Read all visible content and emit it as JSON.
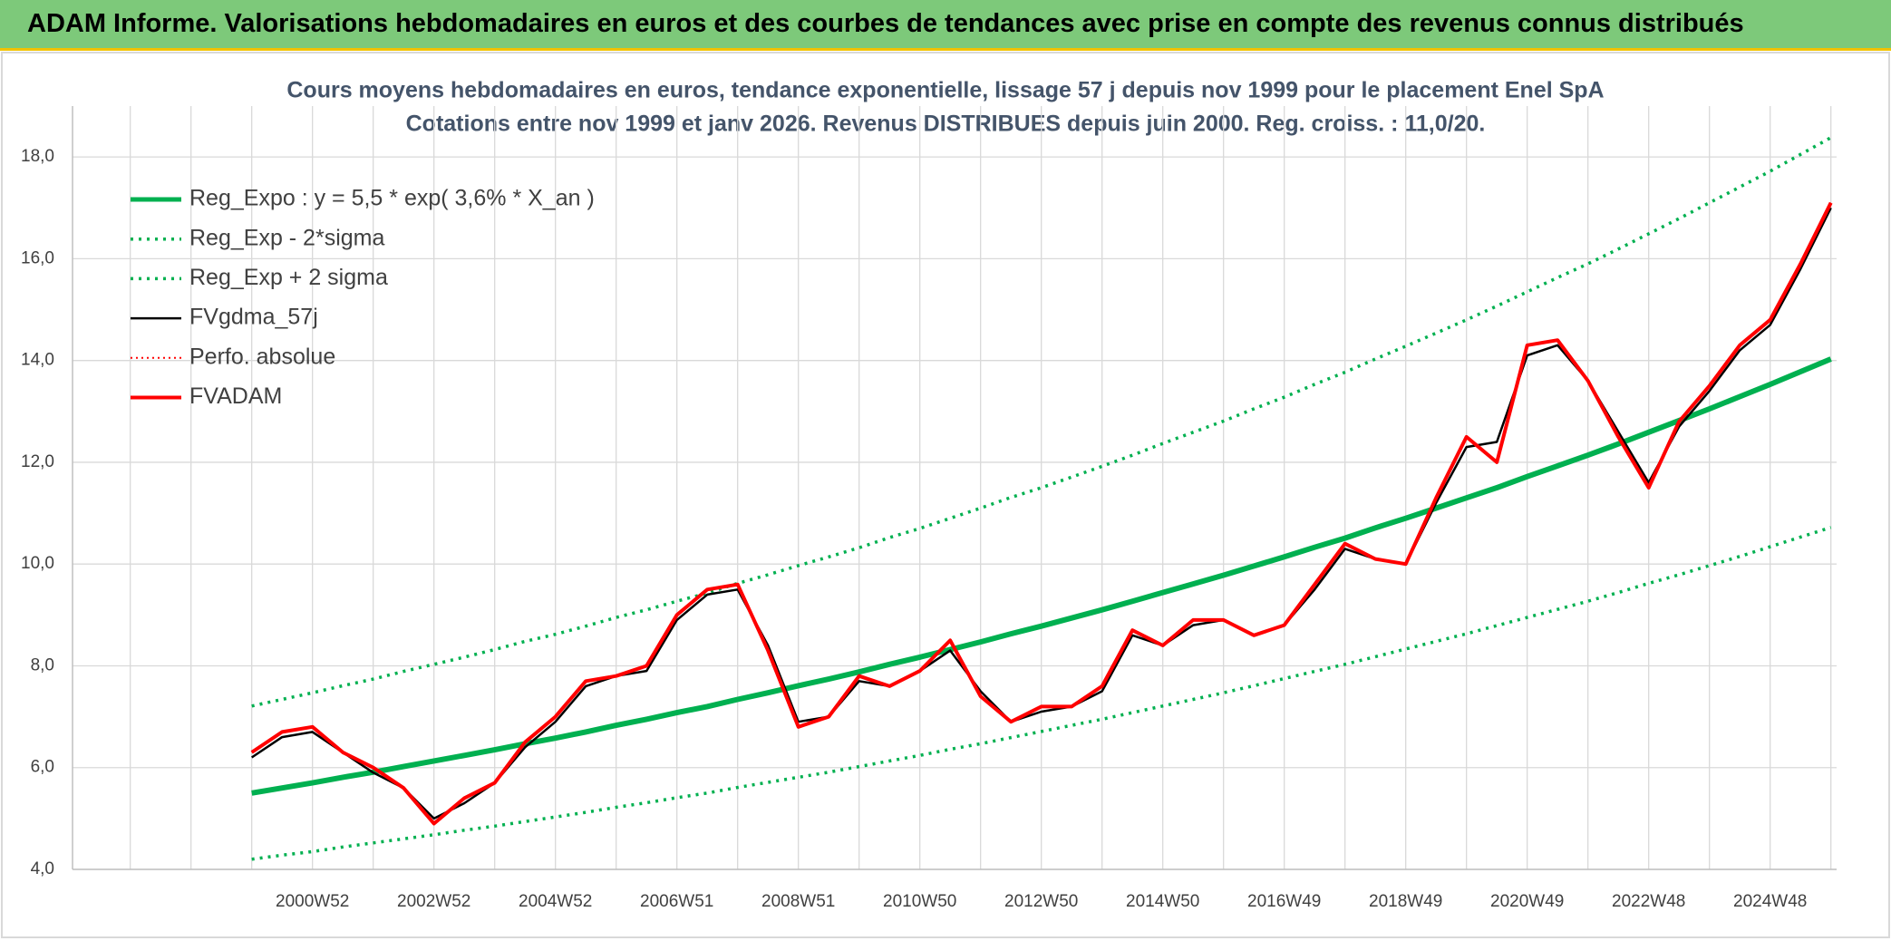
{
  "header": {
    "title": "ADAM Informe. Valorisations hebdomadaires en euros et des courbes de tendances avec prise en compte des revenus connus distribués"
  },
  "chart_data": {
    "type": "line",
    "title": "Cours moyens hebdomadaires en euros, tendance exponentielle, lissage 57 j depuis nov 1999 pour le placement Enel SpA",
    "subtitle": "Cotations entre nov 1999 et janv 2026. Revenus DISTRIBUES depuis juin 2000. Reg. croiss. : 11,0/20.",
    "categories": [
      null,
      null,
      null,
      null,
      null,
      null,
      "2000W52",
      null,
      null,
      null,
      "2002W52",
      null,
      null,
      null,
      "2004W52",
      null,
      null,
      null,
      "2006W51",
      null,
      null,
      null,
      "2008W51",
      null,
      null,
      null,
      "2010W50",
      null,
      null,
      null,
      "2012W50",
      null,
      null,
      null,
      "2014W50",
      null,
      null,
      null,
      "2016W49",
      null,
      null,
      null,
      "2018W49",
      null,
      null,
      null,
      "2020W49",
      null,
      null,
      null,
      "2022W48",
      null,
      null,
      null,
      "2024W48",
      null,
      null
    ],
    "ylim": [
      4,
      19
    ],
    "yticks": [
      {
        "value": 4,
        "label": "4,0"
      },
      {
        "value": 6,
        "label": "6,0"
      },
      {
        "value": 8,
        "label": "8,0"
      },
      {
        "value": 10,
        "label": "10,0"
      },
      {
        "value": 12,
        "label": "12,0"
      },
      {
        "value": 14,
        "label": "14,0"
      },
      {
        "value": 16,
        "label": "16,0"
      },
      {
        "value": 18,
        "label": "18,0"
      }
    ],
    "grid": true,
    "series": [
      {
        "name": "Reg_Expo : y = 5,5 * exp( 3,6% *  X_an )",
        "color": "#00b050",
        "style": "solid",
        "width": 6,
        "values": [
          null,
          null,
          null,
          null,
          5.5,
          5.6,
          5.7,
          5.81,
          5.91,
          6.02,
          6.13,
          6.24,
          6.35,
          6.47,
          6.58,
          6.7,
          6.83,
          6.95,
          7.08,
          7.2,
          7.34,
          7.47,
          7.61,
          7.74,
          7.88,
          8.03,
          8.17,
          8.32,
          8.47,
          8.63,
          8.78,
          8.94,
          9.1,
          9.27,
          9.44,
          9.61,
          9.78,
          9.96,
          10.14,
          10.33,
          10.51,
          10.71,
          10.9,
          11.1,
          11.3,
          11.5,
          11.72,
          11.93,
          12.14,
          12.36,
          12.59,
          12.82,
          13.05,
          13.29,
          13.53,
          13.78,
          14.03
        ]
      },
      {
        "name": "Reg_Exp - 2*sigma",
        "color": "#00b050",
        "style": "dotted",
        "width": 3.5,
        "values": [
          null,
          null,
          null,
          null,
          4.2,
          4.28,
          4.35,
          4.44,
          4.52,
          4.6,
          4.68,
          4.77,
          4.85,
          4.94,
          5.03,
          5.12,
          5.22,
          5.31,
          5.41,
          5.5,
          5.61,
          5.71,
          5.81,
          5.91,
          6.02,
          6.13,
          6.24,
          6.36,
          6.47,
          6.59,
          6.71,
          6.83,
          6.95,
          7.08,
          7.21,
          7.34,
          7.47,
          7.61,
          7.75,
          7.89,
          8.03,
          8.18,
          8.33,
          8.48,
          8.63,
          8.79,
          8.95,
          9.11,
          9.27,
          9.44,
          9.62,
          9.79,
          9.97,
          10.15,
          10.34,
          10.53,
          10.72
        ]
      },
      {
        "name": "Reg_Exp + 2 sigma",
        "color": "#00b050",
        "style": "dotted",
        "width": 3.5,
        "values": [
          null,
          null,
          null,
          null,
          7.21,
          7.34,
          7.47,
          7.61,
          7.74,
          7.89,
          8.03,
          8.17,
          8.32,
          8.48,
          8.62,
          8.78,
          8.95,
          9.1,
          9.27,
          9.43,
          9.62,
          9.79,
          9.97,
          10.14,
          10.32,
          10.52,
          10.7,
          10.9,
          11.1,
          11.31,
          11.5,
          11.71,
          11.92,
          12.14,
          12.37,
          12.59,
          12.81,
          13.05,
          13.28,
          13.53,
          13.77,
          14.03,
          14.28,
          14.54,
          14.8,
          15.07,
          15.35,
          15.63,
          15.9,
          16.19,
          16.49,
          16.79,
          17.1,
          17.41,
          17.72,
          18.05,
          18.38
        ]
      },
      {
        "name": "FVgdma_57j",
        "color": "#000000",
        "style": "solid",
        "width": 2.5,
        "values": [
          null,
          null,
          null,
          null,
          6.2,
          6.6,
          6.7,
          6.3,
          5.9,
          5.6,
          5.0,
          5.3,
          5.7,
          6.4,
          6.9,
          7.6,
          7.8,
          7.9,
          8.9,
          9.4,
          9.5,
          8.4,
          6.9,
          7.0,
          7.7,
          7.6,
          7.9,
          8.3,
          7.5,
          6.9,
          7.1,
          7.2,
          7.5,
          8.6,
          8.4,
          8.8,
          8.9,
          8.6,
          8.8,
          9.5,
          10.3,
          10.1,
          10.0,
          11.2,
          12.3,
          12.4,
          14.1,
          14.3,
          13.6,
          12.6,
          11.6,
          12.7,
          13.4,
          14.2,
          14.7,
          15.8,
          17.0
        ]
      },
      {
        "name": "Perfo. absolue",
        "color": "#ff0000",
        "style": "dotted",
        "width": 2,
        "values": [
          null,
          null,
          null,
          null,
          6.3,
          6.7,
          6.8,
          6.3,
          6.0,
          5.6,
          4.9,
          5.4,
          5.7,
          6.5,
          7.0,
          7.7,
          7.8,
          8.0,
          9.0,
          9.5,
          9.6,
          8.3,
          6.8,
          7.0,
          7.8,
          7.6,
          7.9,
          8.5,
          7.4,
          6.9,
          7.2,
          7.2,
          7.6,
          8.7,
          8.4,
          8.9,
          8.9,
          8.6,
          8.8,
          9.6,
          10.4,
          10.1,
          10.0,
          11.3,
          12.5,
          12.0,
          14.3,
          14.4,
          13.6,
          12.5,
          11.5,
          12.8,
          13.5,
          14.3,
          14.8,
          15.9,
          17.1
        ]
      },
      {
        "name": "FVADAM",
        "color": "#ff0000",
        "style": "solid",
        "width": 4,
        "values": [
          null,
          null,
          null,
          null,
          6.3,
          6.7,
          6.8,
          6.3,
          6.0,
          5.6,
          4.9,
          5.4,
          5.7,
          6.5,
          7.0,
          7.7,
          7.8,
          8.0,
          9.0,
          9.5,
          9.6,
          8.3,
          6.8,
          7.0,
          7.8,
          7.6,
          7.9,
          8.5,
          7.4,
          6.9,
          7.2,
          7.2,
          7.6,
          8.7,
          8.4,
          8.9,
          8.9,
          8.6,
          8.8,
          9.6,
          10.4,
          10.1,
          10.0,
          11.3,
          12.5,
          12.0,
          14.3,
          14.4,
          13.6,
          12.5,
          11.5,
          12.8,
          13.5,
          14.3,
          14.8,
          15.9,
          17.1
        ]
      }
    ]
  }
}
